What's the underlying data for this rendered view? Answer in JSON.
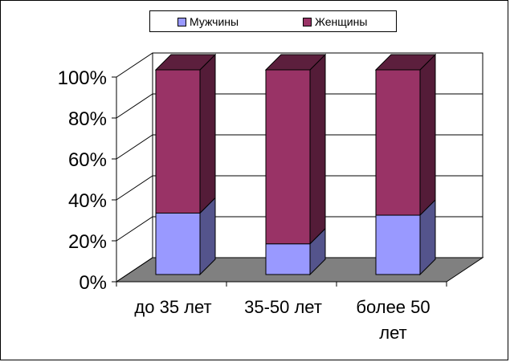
{
  "chart_data": {
    "type": "bar",
    "stacked": true,
    "percent": true,
    "categories": [
      "до 35 лет",
      "35-50 лет",
      "более 50 лет"
    ],
    "series": [
      {
        "name": "Мужчины",
        "values": [
          30,
          15,
          29
        ],
        "color": "#9999FF"
      },
      {
        "name": "Женщины",
        "values": [
          70,
          85,
          71
        ],
        "color": "#993366"
      }
    ],
    "ylim": [
      0,
      100
    ],
    "yticks": [
      "0%",
      "20%",
      "40%",
      "60%",
      "80%",
      "100%"
    ],
    "grid": true,
    "legend_position": "top",
    "title": "",
    "xlabel": "",
    "ylabel": "",
    "floor_color": "#808080"
  }
}
